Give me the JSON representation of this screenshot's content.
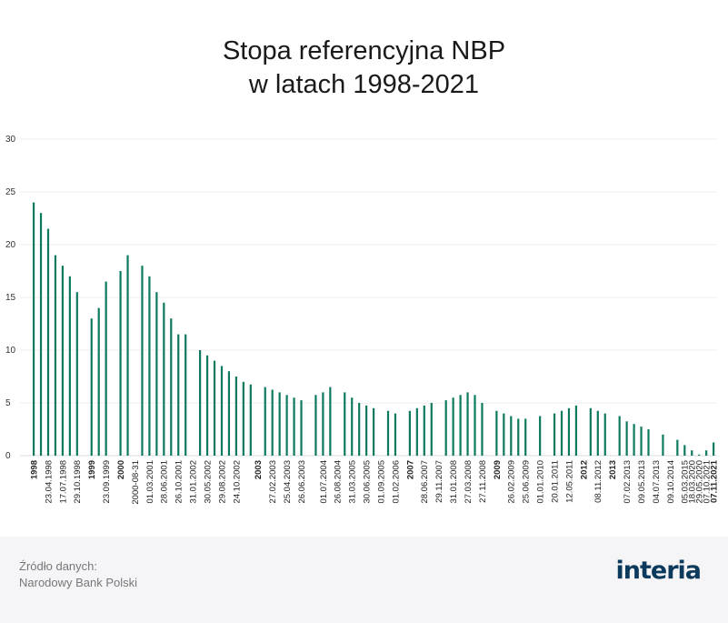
{
  "title_lines": [
    "Stopa referencyjna NBP",
    "w latach 1998-2021"
  ],
  "source": {
    "label": "Źródło danych:",
    "name": "Narodowy Bank Polski"
  },
  "logo_text": "interia",
  "colors": {
    "bar": "#0d7a5f",
    "grid": "#eeeeee",
    "logo": "#0c3a5c",
    "footer_bg": "#f5f5f7"
  },
  "chart_data": {
    "type": "bar",
    "title": "Stopa referencyjna NBP w latach 1998-2021",
    "xlabel": "",
    "ylabel": "",
    "ylim": [
      0,
      30
    ],
    "yticks": [
      0,
      5,
      10,
      15,
      20,
      25,
      30
    ],
    "grid": true,
    "values": [
      24,
      23,
      21.5,
      19,
      18,
      17,
      15.5,
      13,
      14,
      16.5,
      17.5,
      19,
      18,
      17,
      15.5,
      14.5,
      13,
      11.5,
      11.5,
      10,
      9.5,
      9,
      8.5,
      8,
      7.5,
      7,
      6.75,
      6.5,
      6.25,
      6,
      5.75,
      5.5,
      5.25,
      5.75,
      6,
      6.5,
      6,
      5.5,
      5,
      4.75,
      4.5,
      4.25,
      4,
      4.25,
      4.5,
      4.75,
      5,
      5.25,
      5.5,
      5.75,
      6,
      5.75,
      5,
      4.25,
      4,
      3.75,
      3.5,
      3.5,
      3.75,
      4,
      4.25,
      4.5,
      4.75,
      4.5,
      4.25,
      4,
      3.75,
      3.25,
      3,
      2.75,
      2.5,
      2,
      1.5,
      1,
      0.5,
      0.1,
      0.5,
      1.25
    ],
    "x_positions": [
      0,
      1,
      2,
      3,
      4,
      5,
      6,
      8,
      9,
      10,
      12,
      13,
      15,
      16,
      17,
      18,
      19,
      20,
      21,
      23,
      24,
      25,
      26,
      27,
      28,
      29,
      30,
      32,
      33,
      34,
      35,
      36,
      37,
      39,
      40,
      41,
      43,
      44,
      45,
      46,
      47,
      49,
      50,
      52,
      53,
      54,
      55,
      57,
      58,
      59,
      60,
      61,
      62,
      64,
      65,
      66,
      67,
      68,
      70,
      72,
      73,
      74,
      75,
      77,
      78,
      79,
      81,
      82,
      83,
      84,
      85,
      87,
      89,
      90,
      91,
      92,
      93,
      94
    ],
    "x_count": 95,
    "tick_labels": [
      {
        "pos": 0,
        "label": "1998",
        "bold": true
      },
      {
        "pos": 2,
        "label": "23.04.1998",
        "bold": false
      },
      {
        "pos": 4,
        "label": "17.07.1998",
        "bold": false
      },
      {
        "pos": 6,
        "label": "29.10.1998",
        "bold": false
      },
      {
        "pos": 8,
        "label": "1999",
        "bold": true
      },
      {
        "pos": 10,
        "label": "23.09.1999",
        "bold": false
      },
      {
        "pos": 12,
        "label": "2000",
        "bold": true
      },
      {
        "pos": 14,
        "label": "2000-08-31",
        "bold": false
      },
      {
        "pos": 16,
        "label": "01.03.2001",
        "bold": false
      },
      {
        "pos": 18,
        "label": "28.06.2001",
        "bold": false
      },
      {
        "pos": 20,
        "label": "26.10.2001",
        "bold": false
      },
      {
        "pos": 22,
        "label": "31.01.2002",
        "bold": false
      },
      {
        "pos": 24,
        "label": "30.05.2002",
        "bold": false
      },
      {
        "pos": 26,
        "label": "29.08.2002",
        "bold": false
      },
      {
        "pos": 28,
        "label": "24.10.2002",
        "bold": false
      },
      {
        "pos": 31,
        "label": "2003",
        "bold": true
      },
      {
        "pos": 33,
        "label": "27.02.2003",
        "bold": false
      },
      {
        "pos": 35,
        "label": "25.04.2003",
        "bold": false
      },
      {
        "pos": 37,
        "label": "26.06.2003",
        "bold": false
      },
      {
        "pos": 40,
        "label": "01.07.2004",
        "bold": false
      },
      {
        "pos": 42,
        "label": "26.08.2004",
        "bold": false
      },
      {
        "pos": 44,
        "label": "31.03.2005",
        "bold": false
      },
      {
        "pos": 46,
        "label": "30.06.2005",
        "bold": false
      },
      {
        "pos": 48,
        "label": "01.09.2005",
        "bold": false
      },
      {
        "pos": 50,
        "label": "01.02.2006",
        "bold": false
      },
      {
        "pos": 52,
        "label": "2007",
        "bold": true
      },
      {
        "pos": 54,
        "label": "28.06.2007",
        "bold": false
      },
      {
        "pos": 56,
        "label": "29.11.2007",
        "bold": false
      },
      {
        "pos": 58,
        "label": "31.01.2008",
        "bold": false
      },
      {
        "pos": 60,
        "label": "27.03.2008",
        "bold": false
      },
      {
        "pos": 62,
        "label": "27.11.2008",
        "bold": false
      },
      {
        "pos": 64,
        "label": "2009",
        "bold": true
      },
      {
        "pos": 66,
        "label": "26.02.2009",
        "bold": false
      },
      {
        "pos": 68,
        "label": "25.06.2009",
        "bold": false
      },
      {
        "pos": 70,
        "label": "01.01.2010",
        "bold": false
      },
      {
        "pos": 72,
        "label": "20.01.2011",
        "bold": false
      },
      {
        "pos": 74,
        "label": "12.05.2011",
        "bold": false
      },
      {
        "pos": 76,
        "label": "2012",
        "bold": true
      },
      {
        "pos": 78,
        "label": "08.11.2012",
        "bold": false
      },
      {
        "pos": 80,
        "label": "2013",
        "bold": true
      },
      {
        "pos": 82,
        "label": "07.02.2013",
        "bold": false
      },
      {
        "pos": 84,
        "label": "09.05.2013",
        "bold": false
      },
      {
        "pos": 86,
        "label": "04.07.2013",
        "bold": false
      },
      {
        "pos": 88,
        "label": "09.10.2014",
        "bold": false
      },
      {
        "pos": 90,
        "label": "05.03.2015",
        "bold": false
      },
      {
        "pos": 91,
        "label": "18.03.2020",
        "bold": false
      },
      {
        "pos": 92,
        "label": "29.05.2020",
        "bold": false
      },
      {
        "pos": 93,
        "label": "07.10.2021",
        "bold": false
      },
      {
        "pos": 94,
        "label": "07.11.2021",
        "bold": true
      }
    ]
  }
}
